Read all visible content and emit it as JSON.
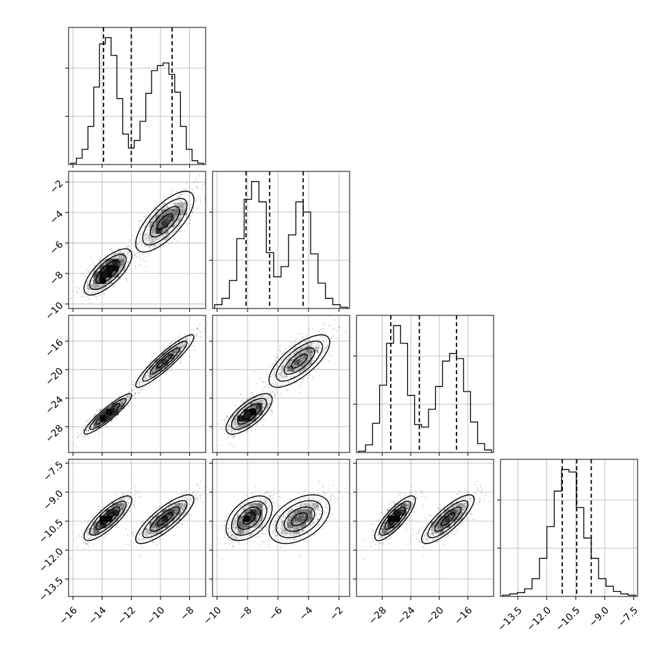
{
  "chart_data": {
    "type": "corner",
    "grid": true,
    "parameters": [
      {
        "range": [
          -16.3,
          -6.9
        ],
        "ticks": [
          -16,
          -14,
          -12,
          -10,
          -8
        ],
        "tick_labels": [
          "−16",
          "−14",
          "−12",
          "−10",
          "−8"
        ],
        "quantiles": [
          -13.9,
          -12.0,
          -9.2
        ]
      },
      {
        "range": [
          -10.3,
          -1.3
        ],
        "ticks": [
          -10,
          -8,
          -6,
          -4,
          -2
        ],
        "tick_labels": [
          "−10",
          "−8",
          "−6",
          "−4",
          "−2"
        ],
        "quantiles": [
          -8.1,
          -6.55,
          -4.35
        ]
      },
      {
        "range": [
          -31.6,
          -12.4
        ],
        "ticks": [
          -28,
          -24,
          -20,
          -16
        ],
        "tick_labels": [
          "−28",
          "−24",
          "−20",
          "−16"
        ],
        "quantiles": [
          -26.8,
          -22.8,
          -17.6
        ]
      },
      {
        "range": [
          -14.4,
          -7.3
        ],
        "ticks": [
          -13.5,
          -12.0,
          -10.5,
          -9.0,
          -7.5
        ],
        "tick_labels": [
          "−13.5",
          "−12.0",
          "−10.5",
          "−9.0",
          "−7.5"
        ],
        "quantiles": [
          -11.2,
          -10.45,
          -9.7
        ]
      }
    ],
    "diagonal_histograms": [
      [
        0.01,
        0.05,
        0.12,
        0.3,
        0.61,
        0.95,
        1.0,
        0.86,
        0.52,
        0.24,
        0.13,
        0.19,
        0.34,
        0.56,
        0.74,
        0.78,
        0.8,
        0.71,
        0.57,
        0.3,
        0.12,
        0.03,
        0.01
      ],
      [
        0.03,
        0.08,
        0.22,
        0.55,
        0.86,
        1.0,
        0.84,
        0.44,
        0.25,
        0.33,
        0.58,
        0.84,
        0.76,
        0.43,
        0.2,
        0.08,
        0.03,
        0.01
      ],
      [
        0.01,
        0.06,
        0.23,
        0.53,
        0.86,
        1.0,
        0.86,
        0.45,
        0.22,
        0.2,
        0.34,
        0.52,
        0.72,
        0.78,
        0.74,
        0.48,
        0.24,
        0.07,
        0.02
      ],
      [
        0.01,
        0.02,
        0.03,
        0.06,
        0.14,
        0.3,
        0.55,
        0.83,
        1.0,
        0.98,
        0.7,
        0.46,
        0.3,
        0.14,
        0.08,
        0.04,
        0.02,
        0.01
      ]
    ],
    "modes": [
      {
        "mean": [
          -13.6,
          -7.9,
          -26.2,
          -10.35
        ],
        "std": [
          0.78,
          0.72,
          1.35,
          0.55
        ],
        "weight": 0.5
      },
      {
        "mean": [
          -9.7,
          -4.6,
          -18.8,
          -10.4
        ],
        "std": [
          0.95,
          0.95,
          1.75,
          0.6
        ],
        "weight": 0.5
      }
    ],
    "correlations": {
      "0-1": 0.72,
      "0-2": 0.92,
      "1-2": 0.72,
      "0-3": 0.82,
      "1-3": 0.45,
      "2-3": 0.82
    }
  }
}
